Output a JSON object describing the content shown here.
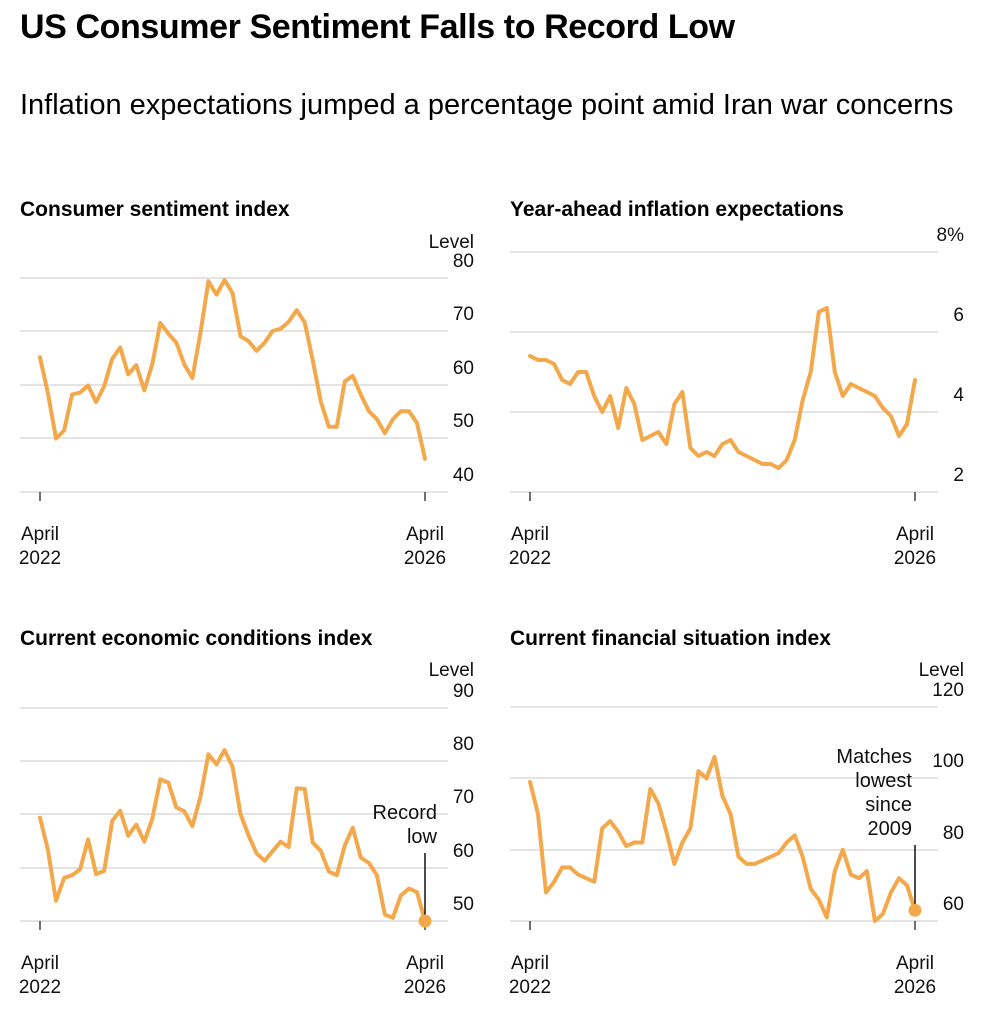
{
  "header": {
    "title": "US Consumer Sentiment Falls to Record Low",
    "subtitle": "Inflation expectations jumped a percentage point amid Iran war concerns"
  },
  "colors": {
    "series": "#F2A84B",
    "grid": "#d4d4d4",
    "text": "#000000"
  },
  "chart_data": [
    {
      "type": "line",
      "title": "Consumer sentiment index",
      "unit_label": "Level",
      "ylim": [
        40,
        80
      ],
      "yticks": [
        "80",
        "70",
        "60",
        "50",
        "40"
      ],
      "x_start_label": [
        "April",
        "2022"
      ],
      "x_end_label": [
        "April",
        "2026"
      ],
      "series": [
        {
          "name": "Consumer sentiment index",
          "values": [
            65.2,
            58.4,
            50.0,
            51.5,
            58.2,
            58.6,
            59.9,
            56.8,
            59.8,
            64.9,
            67.0,
            62.0,
            63.7,
            59.0,
            63.9,
            71.6,
            69.6,
            67.9,
            63.8,
            61.3,
            69.7,
            79.4,
            76.9,
            79.6,
            77.2,
            69.1,
            68.2,
            66.4,
            67.9,
            70.1,
            70.5,
            71.8,
            74.0,
            71.7,
            64.7,
            57.0,
            52.2,
            52.2,
            60.7,
            61.7,
            58.2,
            55.1,
            53.6,
            51.0,
            53.6,
            55.1,
            55.1,
            52.9,
            46.2
          ]
        }
      ],
      "annotation": ""
    },
    {
      "type": "line",
      "title": "Year-ahead inflation expectations",
      "unit_label": "",
      "ylim": [
        2,
        8
      ],
      "yticks": [
        "8%",
        "6",
        "4",
        "2"
      ],
      "x_start_label": [
        "April",
        "2022"
      ],
      "x_end_label": [
        "April",
        "2026"
      ],
      "series": [
        {
          "name": "Year-ahead inflation expectations",
          "values": [
            5.4,
            5.3,
            5.3,
            5.2,
            4.8,
            4.7,
            5.0,
            5.0,
            4.4,
            4.0,
            4.4,
            3.6,
            4.6,
            4.2,
            3.3,
            3.4,
            3.5,
            3.2,
            4.2,
            4.5,
            3.1,
            2.9,
            3.0,
            2.9,
            3.2,
            3.3,
            3.0,
            2.9,
            2.8,
            2.7,
            2.7,
            2.6,
            2.8,
            3.3,
            4.3,
            5.0,
            6.5,
            6.6,
            5.0,
            4.4,
            4.7,
            4.6,
            4.5,
            4.4,
            4.1,
            3.9,
            3.4,
            3.7,
            4.8
          ]
        }
      ],
      "annotation": ""
    },
    {
      "type": "line",
      "title": "Current economic conditions index",
      "unit_label": "Level",
      "ylim": [
        50,
        90
      ],
      "yticks": [
        "90",
        "80",
        "70",
        "60",
        "50"
      ],
      "x_start_label": [
        "April",
        "2022"
      ],
      "x_end_label": [
        "April",
        "2026"
      ],
      "series": [
        {
          "name": "Current economic conditions index",
          "values": [
            69.4,
            63.3,
            53.8,
            58.1,
            58.6,
            59.7,
            65.3,
            58.8,
            59.4,
            68.8,
            70.7,
            66.0,
            68.1,
            64.9,
            69.2,
            76.6,
            76.0,
            71.3,
            70.6,
            67.8,
            73.3,
            81.3,
            79.4,
            82.1,
            79.0,
            70.1,
            66.1,
            62.7,
            61.3,
            63.1,
            64.9,
            63.9,
            74.9,
            74.8,
            64.7,
            63.2,
            59.3,
            58.6,
            64.2,
            67.5,
            61.9,
            60.9,
            58.6,
            51.2,
            50.6,
            54.8,
            56.1,
            55.4,
            50.0
          ]
        }
      ],
      "annotation": "Record\nlow"
    },
    {
      "type": "line",
      "title": "Current financial situation index",
      "unit_label": "Level",
      "ylim": [
        60,
        120
      ],
      "yticks": [
        "120",
        "100",
        "80",
        "60"
      ],
      "x_start_label": [
        "April",
        "2022"
      ],
      "x_end_label": [
        "April",
        "2026"
      ],
      "series": [
        {
          "name": "Current financial situation index",
          "values": [
            99.0,
            90.0,
            68.0,
            71.0,
            75.0,
            75.0,
            73.0,
            72.0,
            71.0,
            86.0,
            88.0,
            85.0,
            81.0,
            82.0,
            82.0,
            97.0,
            93.0,
            85.0,
            76.0,
            82.0,
            86.0,
            102.0,
            100.0,
            106.0,
            95.0,
            90.0,
            78.0,
            76.0,
            76.0,
            77.0,
            78.0,
            79.0,
            82.0,
            84.0,
            78.0,
            69.0,
            66.0,
            61.0,
            74.0,
            80.0,
            73.0,
            72.0,
            74.0,
            60.0,
            62.0,
            68.0,
            72.0,
            70.0,
            63.0
          ]
        }
      ],
      "annotation": "Matches\nlowest\nsince\n2009"
    }
  ]
}
